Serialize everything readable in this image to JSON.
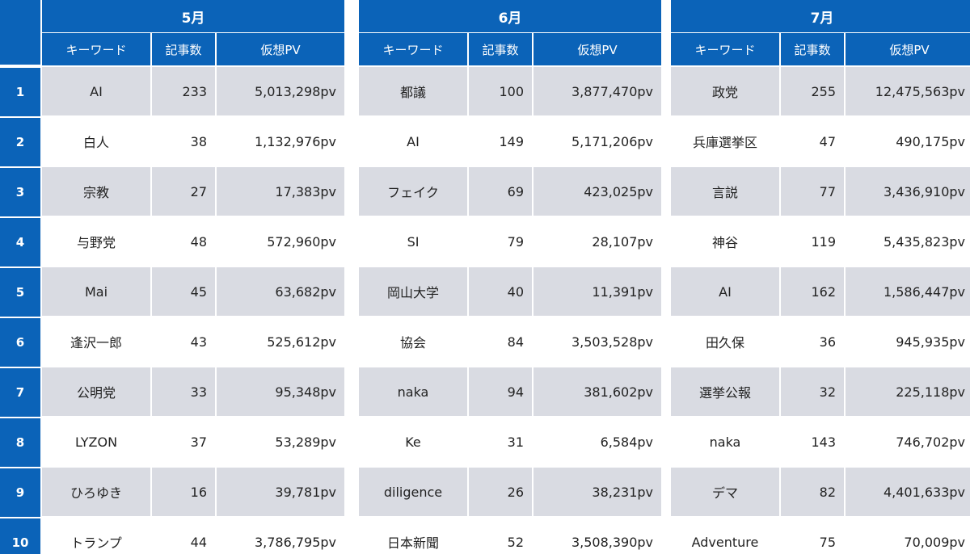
{
  "ranks": [
    "1",
    "2",
    "3",
    "4",
    "5",
    "6",
    "7",
    "8",
    "9",
    "10"
  ],
  "headers": {
    "keyword": "キーワード",
    "count": "記事数",
    "pv": "仮想PV"
  },
  "months": [
    {
      "title": "5月",
      "rows": [
        {
          "keyword": "AI",
          "count": "233",
          "pv": "5,013,298pv"
        },
        {
          "keyword": "白人",
          "count": "38",
          "pv": "1,132,976pv"
        },
        {
          "keyword": "宗教",
          "count": "27",
          "pv": "17,383pv"
        },
        {
          "keyword": "与野党",
          "count": "48",
          "pv": "572,960pv"
        },
        {
          "keyword": "Mai",
          "count": "45",
          "pv": "63,682pv"
        },
        {
          "keyword": "逢沢一郎",
          "count": "43",
          "pv": "525,612pv"
        },
        {
          "keyword": "公明党",
          "count": "33",
          "pv": "95,348pv"
        },
        {
          "keyword": "LYZON",
          "count": "37",
          "pv": "53,289pv"
        },
        {
          "keyword": "ひろゆき",
          "count": "16",
          "pv": "39,781pv"
        },
        {
          "keyword": "トランプ",
          "count": "44",
          "pv": "3,786,795pv"
        }
      ]
    },
    {
      "title": "6月",
      "rows": [
        {
          "keyword": "都議",
          "count": "100",
          "pv": "3,877,470pv"
        },
        {
          "keyword": "AI",
          "count": "149",
          "pv": "5,171,206pv"
        },
        {
          "keyword": "フェイク",
          "count": "69",
          "pv": "423,025pv"
        },
        {
          "keyword": "SI",
          "count": "79",
          "pv": "28,107pv"
        },
        {
          "keyword": "岡山大学",
          "count": "40",
          "pv": "11,391pv"
        },
        {
          "keyword": "協会",
          "count": "84",
          "pv": "3,503,528pv"
        },
        {
          "keyword": "naka",
          "count": "94",
          "pv": "381,602pv"
        },
        {
          "keyword": "Ke",
          "count": "31",
          "pv": "6,584pv"
        },
        {
          "keyword": "diligence",
          "count": "26",
          "pv": "38,231pv"
        },
        {
          "keyword": "日本新聞",
          "count": "52",
          "pv": "3,508,390pv"
        }
      ]
    },
    {
      "title": "7月",
      "rows": [
        {
          "keyword": "政党",
          "count": "255",
          "pv": "12,475,563pv"
        },
        {
          "keyword": "兵庫選挙区",
          "count": "47",
          "pv": "490,175pv"
        },
        {
          "keyword": "言説",
          "count": "77",
          "pv": "3,436,910pv"
        },
        {
          "keyword": "神谷",
          "count": "119",
          "pv": "5,435,823pv"
        },
        {
          "keyword": "AI",
          "count": "162",
          "pv": "1,586,447pv"
        },
        {
          "keyword": "田久保",
          "count": "36",
          "pv": "945,935pv"
        },
        {
          "keyword": "選挙公報",
          "count": "32",
          "pv": "225,118pv"
        },
        {
          "keyword": "naka",
          "count": "143",
          "pv": "746,702pv"
        },
        {
          "keyword": "デマ",
          "count": "82",
          "pv": "4,401,633pv"
        },
        {
          "keyword": "Adventure",
          "count": "75",
          "pv": "70,009pv"
        }
      ]
    }
  ],
  "colors": {
    "header_blue": "#0b63b8",
    "row_shade": "#d9dbe2"
  }
}
